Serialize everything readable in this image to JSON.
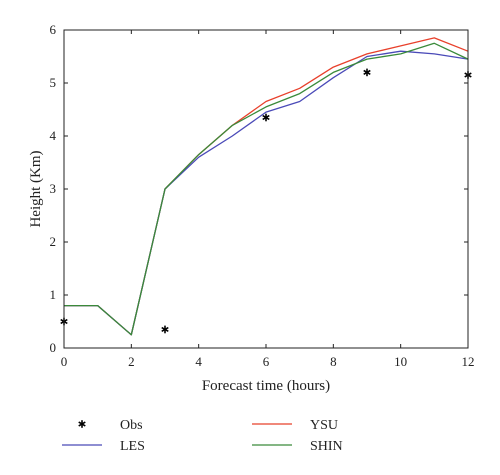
{
  "chart_data": {
    "type": "line",
    "xlabel": "Forecast time (hours)",
    "ylabel": "Height (Km)",
    "xlim": [
      0,
      12
    ],
    "ylim": [
      0,
      6
    ],
    "xticks": [
      0,
      2,
      4,
      6,
      8,
      10,
      12
    ],
    "yticks": [
      0,
      1,
      2,
      3,
      4,
      5,
      6
    ],
    "grid": false,
    "legend_position": "below",
    "obs": {
      "name": "Obs",
      "marker": "asterisk",
      "color": "#000000",
      "x": [
        0,
        3,
        6,
        9,
        12
      ],
      "y": [
        0.5,
        0.35,
        4.35,
        5.2,
        5.15
      ]
    },
    "series": [
      {
        "name": "YSU",
        "color": "#e8402b",
        "x": [
          0,
          1,
          2,
          3,
          4,
          5,
          6,
          7,
          8,
          9,
          10,
          11,
          12
        ],
        "y": [
          0.8,
          0.8,
          0.25,
          3.0,
          3.65,
          4.2,
          4.65,
          4.9,
          5.3,
          5.55,
          5.7,
          5.85,
          5.6
        ]
      },
      {
        "name": "LES",
        "color": "#4a4ab8",
        "x": [
          0,
          1,
          2,
          3,
          4,
          5,
          6,
          7,
          8,
          9,
          10,
          11,
          12
        ],
        "y": [
          0.8,
          0.8,
          0.25,
          3.0,
          3.6,
          4.0,
          4.45,
          4.65,
          5.1,
          5.5,
          5.6,
          5.55,
          5.45
        ]
      },
      {
        "name": "SHIN",
        "color": "#3a8a3a",
        "x": [
          0,
          1,
          2,
          3,
          4,
          5,
          6,
          7,
          8,
          9,
          10,
          11,
          12
        ],
        "y": [
          0.8,
          0.8,
          0.25,
          3.0,
          3.65,
          4.2,
          4.55,
          4.8,
          5.2,
          5.45,
          5.55,
          5.75,
          5.45
        ]
      }
    ]
  }
}
